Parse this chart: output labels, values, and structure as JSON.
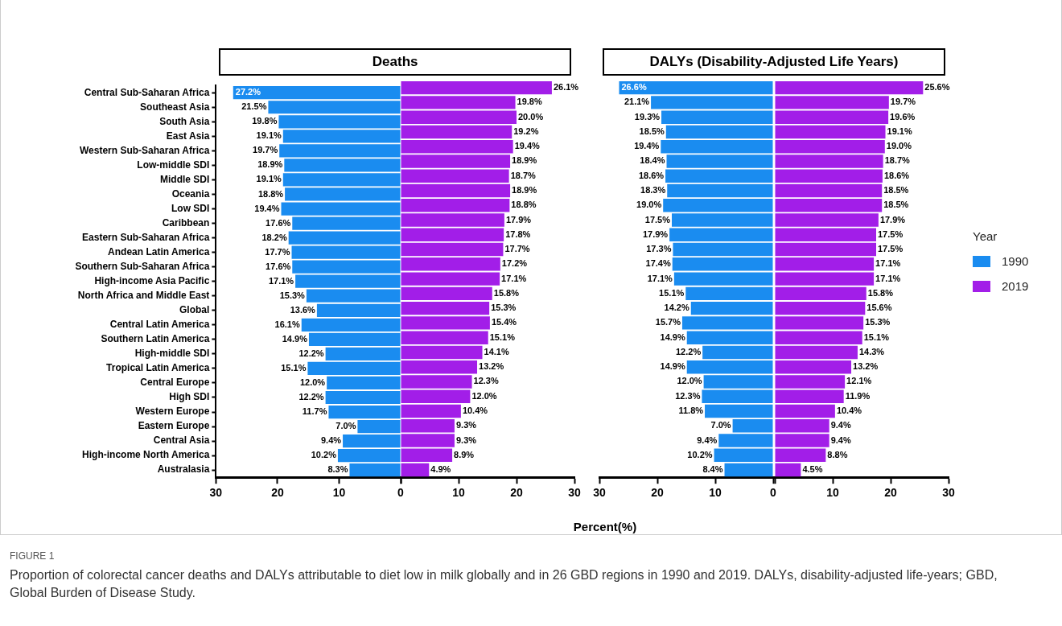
{
  "chart_data": [
    {
      "type": "bar",
      "orientation": "horizontal",
      "title": "Deaths",
      "categories": [
        "Central Sub-Saharan Africa",
        "Southeast Asia",
        "South Asia",
        "East Asia",
        "Western Sub-Saharan Africa",
        "Low-middle SDI",
        "Middle SDI",
        "Oceania",
        "Low SDI",
        "Caribbean",
        "Eastern Sub-Saharan Africa",
        "Andean Latin America",
        "Southern Sub-Saharan Africa",
        "High-income Asia Pacific",
        "North Africa and Middle East",
        "Global",
        "Central Latin America",
        "Southern Latin America",
        "High-middle SDI",
        "Tropical Latin America",
        "Central Europe",
        "High SDI",
        "Western Europe",
        "Eastern Europe",
        "Central Asia",
        "High-income North America",
        "Australasia"
      ],
      "series": [
        {
          "color": "#1a8cf0",
          "values": [
            27.2,
            21.5,
            19.8,
            19.1,
            19.7,
            18.9,
            19.1,
            18.8,
            19.4,
            17.6,
            18.2,
            17.7,
            17.6,
            17.1,
            15.3,
            13.6,
            16.1,
            14.9,
            12.2,
            15.1,
            12.0,
            12.2,
            11.7,
            7.0,
            9.4,
            10.2,
            8.3
          ],
          "value_labels": [
            "27.2%",
            "21.5%",
            "19.8%",
            "19.1%",
            "19.7%",
            "18.9%",
            "19.1%",
            "18.8%",
            "19.4%",
            "17.6%",
            "18.2%",
            "17.7%",
            "17.6%",
            "17.1%",
            "15.3%",
            "13.6%",
            "16.1%",
            "14.9%",
            "12.2%",
            "15.1%",
            "12.0%",
            "12.2%",
            "11.7%",
            "7.0%",
            "9.4%",
            "10.2%",
            "8.3%"
          ]
        }
      ],
      "xlim": [
        30,
        0
      ],
      "xticks": [
        30,
        20,
        10,
        0
      ],
      "grid": false,
      "annotations": [
        "FIGURE 1",
        "Proportion of colorectal cancer deaths and DALYs attributable to diet low in milk globally and in 26 GBD regions in 1990 and 2019. DALYs, disability-adjusted life-years; GBD, Global Burden of Disease Study."
      ]
    },
    {
      "type": "bar",
      "orientation": "horizontal",
      "categories": [
        null,
        null,
        null,
        null,
        null,
        null,
        null,
        null,
        null,
        null,
        null,
        null,
        null,
        null,
        null,
        null,
        null,
        null,
        null,
        null,
        null,
        null,
        null,
        null,
        null,
        null,
        null
      ],
      "series": [
        {
          "color": "#a21ee8",
          "values": [
            26.1,
            19.8,
            20.0,
            19.2,
            19.4,
            18.9,
            18.7,
            18.9,
            18.8,
            17.9,
            17.8,
            17.7,
            17.2,
            17.1,
            15.8,
            15.3,
            15.4,
            15.1,
            14.1,
            13.2,
            12.3,
            12.0,
            10.4,
            9.3,
            9.3,
            8.9,
            4.9
          ],
          "value_labels": [
            "26.1%",
            "19.8%",
            "20.0%",
            "19.2%",
            "19.4%",
            "18.9%",
            "18.7%",
            "18.9%",
            "18.8%",
            "17.9%",
            "17.8%",
            "17.7%",
            "17.2%",
            "17.1%",
            "15.8%",
            "15.3%",
            "15.4%",
            "15.1%",
            "14.1%",
            "13.2%",
            "12.3%",
            "12.0%",
            "10.4%",
            "9.3%",
            "9.3%",
            "8.9%",
            "4.9%"
          ]
        }
      ],
      "xlim": [
        0,
        30
      ],
      "xticks": [
        {
          "value": 0,
          "label": null
        },
        10,
        20,
        30
      ],
      "grid": false,
      "tick_labels": "x"
    },
    {
      "type": "bar",
      "orientation": "horizontal",
      "title": "DALYs (Disability-Adjusted Life Years)",
      "xlabel": "Percent(%)",
      "categories": [
        null,
        null,
        null,
        null,
        null,
        null,
        null,
        null,
        null,
        null,
        null,
        null,
        null,
        null,
        null,
        null,
        null,
        null,
        null,
        null,
        null,
        null,
        null,
        null,
        null,
        null,
        null
      ],
      "series": [
        {
          "name": "1990",
          "color": "#1a8cf0",
          "values": [
            26.6,
            21.1,
            19.3,
            18.5,
            19.4,
            18.4,
            18.6,
            18.3,
            19.0,
            17.5,
            17.9,
            17.3,
            17.4,
            17.1,
            15.1,
            14.2,
            15.7,
            14.9,
            12.2,
            14.9,
            12.0,
            12.3,
            11.8,
            7.0,
            9.4,
            10.2,
            8.4
          ],
          "value_labels": [
            "26.6%",
            "21.1%",
            "19.3%",
            "18.5%",
            "19.4%",
            "18.4%",
            "18.6%",
            "18.3%",
            "19.0%",
            "17.5%",
            "17.9%",
            "17.3%",
            "17.4%",
            "17.1%",
            "15.1%",
            "14.2%",
            "15.7%",
            "14.9%",
            "12.2%",
            "14.9%",
            "12.0%",
            "12.3%",
            "11.8%",
            "7.0%",
            "9.4%",
            "10.2%",
            "8.4%"
          ]
        }
      ],
      "xlim": [
        30,
        0
      ],
      "xticks": [
        30,
        20,
        10,
        0
      ],
      "grid": false,
      "tick_labels": "x"
    },
    {
      "type": "bar",
      "orientation": "horizontal",
      "categories": [
        null,
        null,
        null,
        null,
        null,
        null,
        null,
        null,
        null,
        null,
        null,
        null,
        null,
        null,
        null,
        null,
        null,
        null,
        null,
        null,
        null,
        null,
        null,
        null,
        null,
        null,
        null
      ],
      "series": [
        {
          "name": "2019",
          "color": "#a21ee8",
          "values": [
            25.6,
            19.7,
            19.6,
            19.1,
            19.0,
            18.7,
            18.6,
            18.5,
            18.5,
            17.9,
            17.5,
            17.5,
            17.1,
            17.1,
            15.8,
            15.6,
            15.3,
            15.1,
            14.3,
            13.2,
            12.1,
            11.9,
            10.4,
            9.4,
            9.4,
            8.8,
            4.5
          ],
          "value_labels": [
            "25.6%",
            "19.7%",
            "19.6%",
            "19.1%",
            "19.0%",
            "18.7%",
            "18.6%",
            "18.5%",
            "18.5%",
            "17.9%",
            "17.5%",
            "17.5%",
            "17.1%",
            "17.1%",
            "15.8%",
            "15.6%",
            "15.3%",
            "15.1%",
            "14.3%",
            "13.2%",
            "12.1%",
            "11.9%",
            "10.4%",
            "9.4%",
            "9.4%",
            "8.8%",
            "4.5%"
          ]
        }
      ],
      "xlim": [
        0,
        30
      ],
      "xticks": [
        {
          "value": 0,
          "label": null
        },
        10,
        20,
        30
      ],
      "grid": false,
      "tick_labels": "x",
      "legend": "right",
      "legend_title": "Year"
    }
  ]
}
